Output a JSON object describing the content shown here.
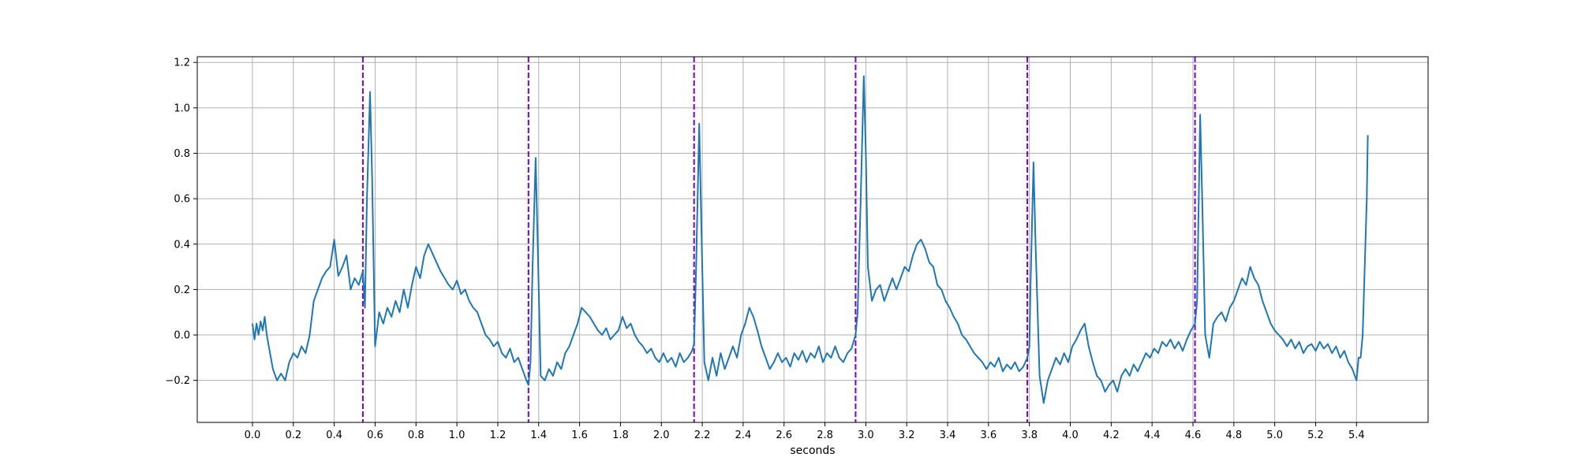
{
  "chart_data": {
    "type": "line",
    "title": "",
    "xlabel": "seconds",
    "ylabel": "",
    "xlim": [
      -0.27,
      5.75
    ],
    "ylim": [
      -0.385,
      1.225
    ],
    "grid": true,
    "x_ticks": [
      "0.0",
      "0.2",
      "0.4",
      "0.6",
      "0.8",
      "1.0",
      "1.2",
      "1.4",
      "1.6",
      "1.8",
      "2.0",
      "2.2",
      "2.4",
      "2.6",
      "2.8",
      "3.0",
      "3.2",
      "3.4",
      "3.6",
      "3.8",
      "4.0",
      "4.2",
      "4.4",
      "4.6",
      "4.8",
      "5.0",
      "5.2",
      "5.4"
    ],
    "y_ticks": [
      "−0.2",
      "0.0",
      "0.2",
      "0.4",
      "0.6",
      "0.8",
      "1.0",
      "1.2"
    ],
    "series": [
      {
        "color": "#1f77b4",
        "style": "solid",
        "points": [
          [
            0.0,
            0.05
          ],
          [
            0.01,
            -0.02
          ],
          [
            0.02,
            0.05
          ],
          [
            0.03,
            0.0
          ],
          [
            0.04,
            0.06
          ],
          [
            0.05,
            0.02
          ],
          [
            0.06,
            0.08
          ],
          [
            0.07,
            0.0
          ],
          [
            0.08,
            -0.05
          ],
          [
            0.09,
            -0.1
          ],
          [
            0.1,
            -0.15
          ],
          [
            0.12,
            -0.2
          ],
          [
            0.14,
            -0.17
          ],
          [
            0.16,
            -0.2
          ],
          [
            0.18,
            -0.12
          ],
          [
            0.2,
            -0.08
          ],
          [
            0.22,
            -0.1
          ],
          [
            0.24,
            -0.05
          ],
          [
            0.26,
            -0.08
          ],
          [
            0.28,
            0.0
          ],
          [
            0.3,
            0.15
          ],
          [
            0.32,
            0.2
          ],
          [
            0.34,
            0.25
          ],
          [
            0.36,
            0.28
          ],
          [
            0.38,
            0.3
          ],
          [
            0.4,
            0.42
          ],
          [
            0.42,
            0.26
          ],
          [
            0.44,
            0.3
          ],
          [
            0.46,
            0.35
          ],
          [
            0.48,
            0.2
          ],
          [
            0.5,
            0.25
          ],
          [
            0.52,
            0.22
          ],
          [
            0.54,
            0.28
          ],
          [
            0.55,
            0.12
          ],
          [
            0.56,
            0.6
          ],
          [
            0.575,
            1.07
          ],
          [
            0.585,
            0.7
          ],
          [
            0.6,
            -0.05
          ],
          [
            0.62,
            0.1
          ],
          [
            0.64,
            0.05
          ],
          [
            0.66,
            0.12
          ],
          [
            0.68,
            0.08
          ],
          [
            0.7,
            0.15
          ],
          [
            0.72,
            0.1
          ],
          [
            0.74,
            0.2
          ],
          [
            0.76,
            0.12
          ],
          [
            0.78,
            0.22
          ],
          [
            0.8,
            0.3
          ],
          [
            0.82,
            0.25
          ],
          [
            0.84,
            0.35
          ],
          [
            0.86,
            0.4
          ],
          [
            0.88,
            0.36
          ],
          [
            0.9,
            0.32
          ],
          [
            0.92,
            0.28
          ],
          [
            0.94,
            0.25
          ],
          [
            0.96,
            0.22
          ],
          [
            0.98,
            0.2
          ],
          [
            1.0,
            0.24
          ],
          [
            1.02,
            0.18
          ],
          [
            1.04,
            0.2
          ],
          [
            1.06,
            0.15
          ],
          [
            1.08,
            0.12
          ],
          [
            1.1,
            0.1
          ],
          [
            1.12,
            0.05
          ],
          [
            1.14,
            0.0
          ],
          [
            1.16,
            -0.02
          ],
          [
            1.18,
            -0.05
          ],
          [
            1.2,
            -0.03
          ],
          [
            1.22,
            -0.08
          ],
          [
            1.24,
            -0.1
          ],
          [
            1.26,
            -0.06
          ],
          [
            1.28,
            -0.12
          ],
          [
            1.3,
            -0.1
          ],
          [
            1.32,
            -0.15
          ],
          [
            1.34,
            -0.2
          ],
          [
            1.35,
            -0.22
          ],
          [
            1.36,
            -0.12
          ],
          [
            1.37,
            0.3
          ],
          [
            1.385,
            0.78
          ],
          [
            1.395,
            0.4
          ],
          [
            1.41,
            -0.18
          ],
          [
            1.43,
            -0.2
          ],
          [
            1.45,
            -0.15
          ],
          [
            1.47,
            -0.18
          ],
          [
            1.49,
            -0.12
          ],
          [
            1.51,
            -0.15
          ],
          [
            1.53,
            -0.08
          ],
          [
            1.55,
            -0.05
          ],
          [
            1.57,
            0.0
          ],
          [
            1.59,
            0.05
          ],
          [
            1.61,
            0.12
          ],
          [
            1.63,
            0.1
          ],
          [
            1.65,
            0.08
          ],
          [
            1.67,
            0.05
          ],
          [
            1.69,
            0.02
          ],
          [
            1.71,
            0.0
          ],
          [
            1.73,
            0.03
          ],
          [
            1.75,
            -0.02
          ],
          [
            1.77,
            0.0
          ],
          [
            1.79,
            0.02
          ],
          [
            1.81,
            0.08
          ],
          [
            1.83,
            0.03
          ],
          [
            1.85,
            0.05
          ],
          [
            1.87,
            0.0
          ],
          [
            1.89,
            -0.03
          ],
          [
            1.91,
            -0.05
          ],
          [
            1.93,
            -0.08
          ],
          [
            1.95,
            -0.06
          ],
          [
            1.97,
            -0.1
          ],
          [
            1.99,
            -0.12
          ],
          [
            2.01,
            -0.08
          ],
          [
            2.03,
            -0.12
          ],
          [
            2.05,
            -0.1
          ],
          [
            2.07,
            -0.14
          ],
          [
            2.09,
            -0.08
          ],
          [
            2.11,
            -0.12
          ],
          [
            2.13,
            -0.1
          ],
          [
            2.15,
            -0.07
          ],
          [
            2.16,
            -0.04
          ],
          [
            2.17,
            0.3
          ],
          [
            2.185,
            0.93
          ],
          [
            2.195,
            0.5
          ],
          [
            2.21,
            -0.12
          ],
          [
            2.23,
            -0.2
          ],
          [
            2.25,
            -0.1
          ],
          [
            2.27,
            -0.18
          ],
          [
            2.29,
            -0.08
          ],
          [
            2.31,
            -0.15
          ],
          [
            2.33,
            -0.1
          ],
          [
            2.35,
            -0.05
          ],
          [
            2.37,
            -0.1
          ],
          [
            2.39,
            0.0
          ],
          [
            2.41,
            0.05
          ],
          [
            2.43,
            0.12
          ],
          [
            2.45,
            0.08
          ],
          [
            2.47,
            0.02
          ],
          [
            2.49,
            -0.05
          ],
          [
            2.51,
            -0.1
          ],
          [
            2.53,
            -0.15
          ],
          [
            2.55,
            -0.12
          ],
          [
            2.57,
            -0.08
          ],
          [
            2.59,
            -0.12
          ],
          [
            2.61,
            -0.1
          ],
          [
            2.63,
            -0.14
          ],
          [
            2.65,
            -0.08
          ],
          [
            2.67,
            -0.11
          ],
          [
            2.69,
            -0.07
          ],
          [
            2.71,
            -0.12
          ],
          [
            2.73,
            -0.08
          ],
          [
            2.75,
            -0.1
          ],
          [
            2.77,
            -0.05
          ],
          [
            2.79,
            -0.12
          ],
          [
            2.81,
            -0.08
          ],
          [
            2.83,
            -0.1
          ],
          [
            2.85,
            -0.05
          ],
          [
            2.87,
            -0.1
          ],
          [
            2.89,
            -0.12
          ],
          [
            2.91,
            -0.08
          ],
          [
            2.93,
            -0.06
          ],
          [
            2.95,
            0.0
          ],
          [
            2.96,
            0.1
          ],
          [
            2.975,
            0.6
          ],
          [
            2.99,
            1.14
          ],
          [
            3.0,
            0.8
          ],
          [
            3.01,
            0.3
          ],
          [
            3.03,
            0.15
          ],
          [
            3.05,
            0.2
          ],
          [
            3.07,
            0.22
          ],
          [
            3.09,
            0.15
          ],
          [
            3.11,
            0.2
          ],
          [
            3.13,
            0.25
          ],
          [
            3.15,
            0.2
          ],
          [
            3.17,
            0.25
          ],
          [
            3.19,
            0.3
          ],
          [
            3.21,
            0.28
          ],
          [
            3.23,
            0.35
          ],
          [
            3.25,
            0.4
          ],
          [
            3.27,
            0.42
          ],
          [
            3.29,
            0.38
          ],
          [
            3.31,
            0.32
          ],
          [
            3.33,
            0.3
          ],
          [
            3.35,
            0.22
          ],
          [
            3.37,
            0.2
          ],
          [
            3.39,
            0.15
          ],
          [
            3.41,
            0.12
          ],
          [
            3.43,
            0.08
          ],
          [
            3.45,
            0.05
          ],
          [
            3.47,
            0.0
          ],
          [
            3.49,
            -0.02
          ],
          [
            3.51,
            -0.05
          ],
          [
            3.53,
            -0.08
          ],
          [
            3.55,
            -0.1
          ],
          [
            3.57,
            -0.12
          ],
          [
            3.59,
            -0.15
          ],
          [
            3.61,
            -0.12
          ],
          [
            3.63,
            -0.14
          ],
          [
            3.65,
            -0.1
          ],
          [
            3.67,
            -0.16
          ],
          [
            3.69,
            -0.13
          ],
          [
            3.71,
            -0.15
          ],
          [
            3.73,
            -0.12
          ],
          [
            3.75,
            -0.16
          ],
          [
            3.77,
            -0.14
          ],
          [
            3.79,
            -0.1
          ],
          [
            3.8,
            -0.05
          ],
          [
            3.805,
            0.2
          ],
          [
            3.82,
            0.76
          ],
          [
            3.83,
            0.4
          ],
          [
            3.85,
            -0.18
          ],
          [
            3.87,
            -0.3
          ],
          [
            3.89,
            -0.2
          ],
          [
            3.91,
            -0.15
          ],
          [
            3.93,
            -0.1
          ],
          [
            3.95,
            -0.13
          ],
          [
            3.97,
            -0.08
          ],
          [
            3.99,
            -0.12
          ],
          [
            4.01,
            -0.05
          ],
          [
            4.03,
            -0.02
          ],
          [
            4.05,
            0.02
          ],
          [
            4.07,
            0.05
          ],
          [
            4.09,
            -0.05
          ],
          [
            4.11,
            -0.12
          ],
          [
            4.13,
            -0.18
          ],
          [
            4.15,
            -0.2
          ],
          [
            4.17,
            -0.25
          ],
          [
            4.19,
            -0.22
          ],
          [
            4.21,
            -0.2
          ],
          [
            4.23,
            -0.25
          ],
          [
            4.25,
            -0.18
          ],
          [
            4.27,
            -0.15
          ],
          [
            4.29,
            -0.18
          ],
          [
            4.31,
            -0.13
          ],
          [
            4.33,
            -0.16
          ],
          [
            4.35,
            -0.12
          ],
          [
            4.37,
            -0.08
          ],
          [
            4.39,
            -0.1
          ],
          [
            4.41,
            -0.06
          ],
          [
            4.43,
            -0.08
          ],
          [
            4.45,
            -0.03
          ],
          [
            4.47,
            -0.05
          ],
          [
            4.49,
            -0.02
          ],
          [
            4.51,
            -0.06
          ],
          [
            4.53,
            -0.03
          ],
          [
            4.55,
            -0.07
          ],
          [
            4.57,
            -0.02
          ],
          [
            4.59,
            0.02
          ],
          [
            4.61,
            0.05
          ],
          [
            4.62,
            0.15
          ],
          [
            4.635,
            0.97
          ],
          [
            4.645,
            0.6
          ],
          [
            4.66,
            0.0
          ],
          [
            4.68,
            -0.1
          ],
          [
            4.7,
            0.05
          ],
          [
            4.72,
            0.08
          ],
          [
            4.74,
            0.1
          ],
          [
            4.76,
            0.06
          ],
          [
            4.78,
            0.12
          ],
          [
            4.8,
            0.15
          ],
          [
            4.82,
            0.2
          ],
          [
            4.84,
            0.25
          ],
          [
            4.86,
            0.22
          ],
          [
            4.88,
            0.3
          ],
          [
            4.9,
            0.25
          ],
          [
            4.92,
            0.22
          ],
          [
            4.94,
            0.15
          ],
          [
            4.96,
            0.1
          ],
          [
            4.98,
            0.05
          ],
          [
            5.0,
            0.02
          ],
          [
            5.02,
            0.0
          ],
          [
            5.04,
            -0.02
          ],
          [
            5.06,
            -0.05
          ],
          [
            5.08,
            -0.02
          ],
          [
            5.1,
            -0.06
          ],
          [
            5.12,
            -0.03
          ],
          [
            5.14,
            -0.08
          ],
          [
            5.16,
            -0.05
          ],
          [
            5.18,
            -0.04
          ],
          [
            5.2,
            -0.07
          ],
          [
            5.22,
            -0.03
          ],
          [
            5.24,
            -0.06
          ],
          [
            5.26,
            -0.04
          ],
          [
            5.28,
            -0.08
          ],
          [
            5.3,
            -0.05
          ],
          [
            5.32,
            -0.1
          ],
          [
            5.34,
            -0.07
          ],
          [
            5.36,
            -0.12
          ],
          [
            5.38,
            -0.15
          ],
          [
            5.4,
            -0.2
          ],
          [
            5.41,
            -0.1
          ],
          [
            5.42,
            -0.1
          ],
          [
            5.43,
            0.0
          ],
          [
            5.44,
            0.3
          ],
          [
            5.45,
            0.6
          ],
          [
            5.455,
            0.88
          ]
        ]
      }
    ],
    "vertical_lines": {
      "color": "#7b00d4",
      "style": "dashed",
      "x": [
        0.54,
        1.35,
        2.16,
        2.95,
        3.79,
        4.61
      ]
    }
  }
}
